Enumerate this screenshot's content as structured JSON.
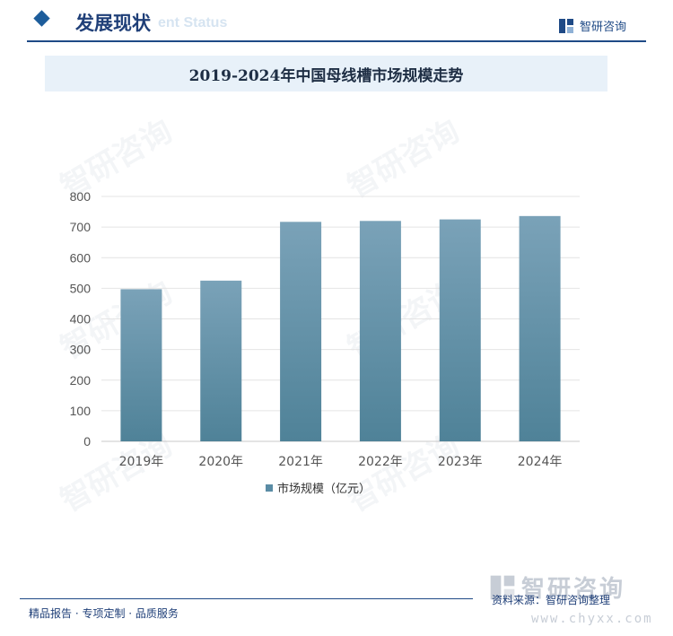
{
  "header": {
    "section_title": "发展现状",
    "section_title_en": "ent Status",
    "brand": "智研咨询"
  },
  "title": "2019-2024年中国母线槽市场规模走势",
  "chart_data": {
    "type": "bar",
    "categories": [
      "2019年",
      "2020年",
      "2021年",
      "2022年",
      "2023年",
      "2024年"
    ],
    "series": [
      {
        "name": "市场规模（亿元）",
        "values": [
          497,
          525,
          717,
          720,
          725,
          736
        ]
      }
    ],
    "ylim": [
      0,
      800
    ],
    "yticks": [
      0,
      100,
      200,
      300,
      400,
      500,
      600,
      700,
      800
    ],
    "grid": true,
    "legend_position": "bottom",
    "bar_color_top": "#7aa2b8",
    "bar_color_bottom": "#4f8298"
  },
  "footer": {
    "services": "精品报告 · 专项定制 · 品质服务",
    "source": "资料来源：智研咨询整理",
    "brand_name": "智研咨询",
    "brand_url": "www.chyxx.com"
  },
  "colors": {
    "accent": "#1f4a86",
    "band": "#e8f1f9"
  }
}
